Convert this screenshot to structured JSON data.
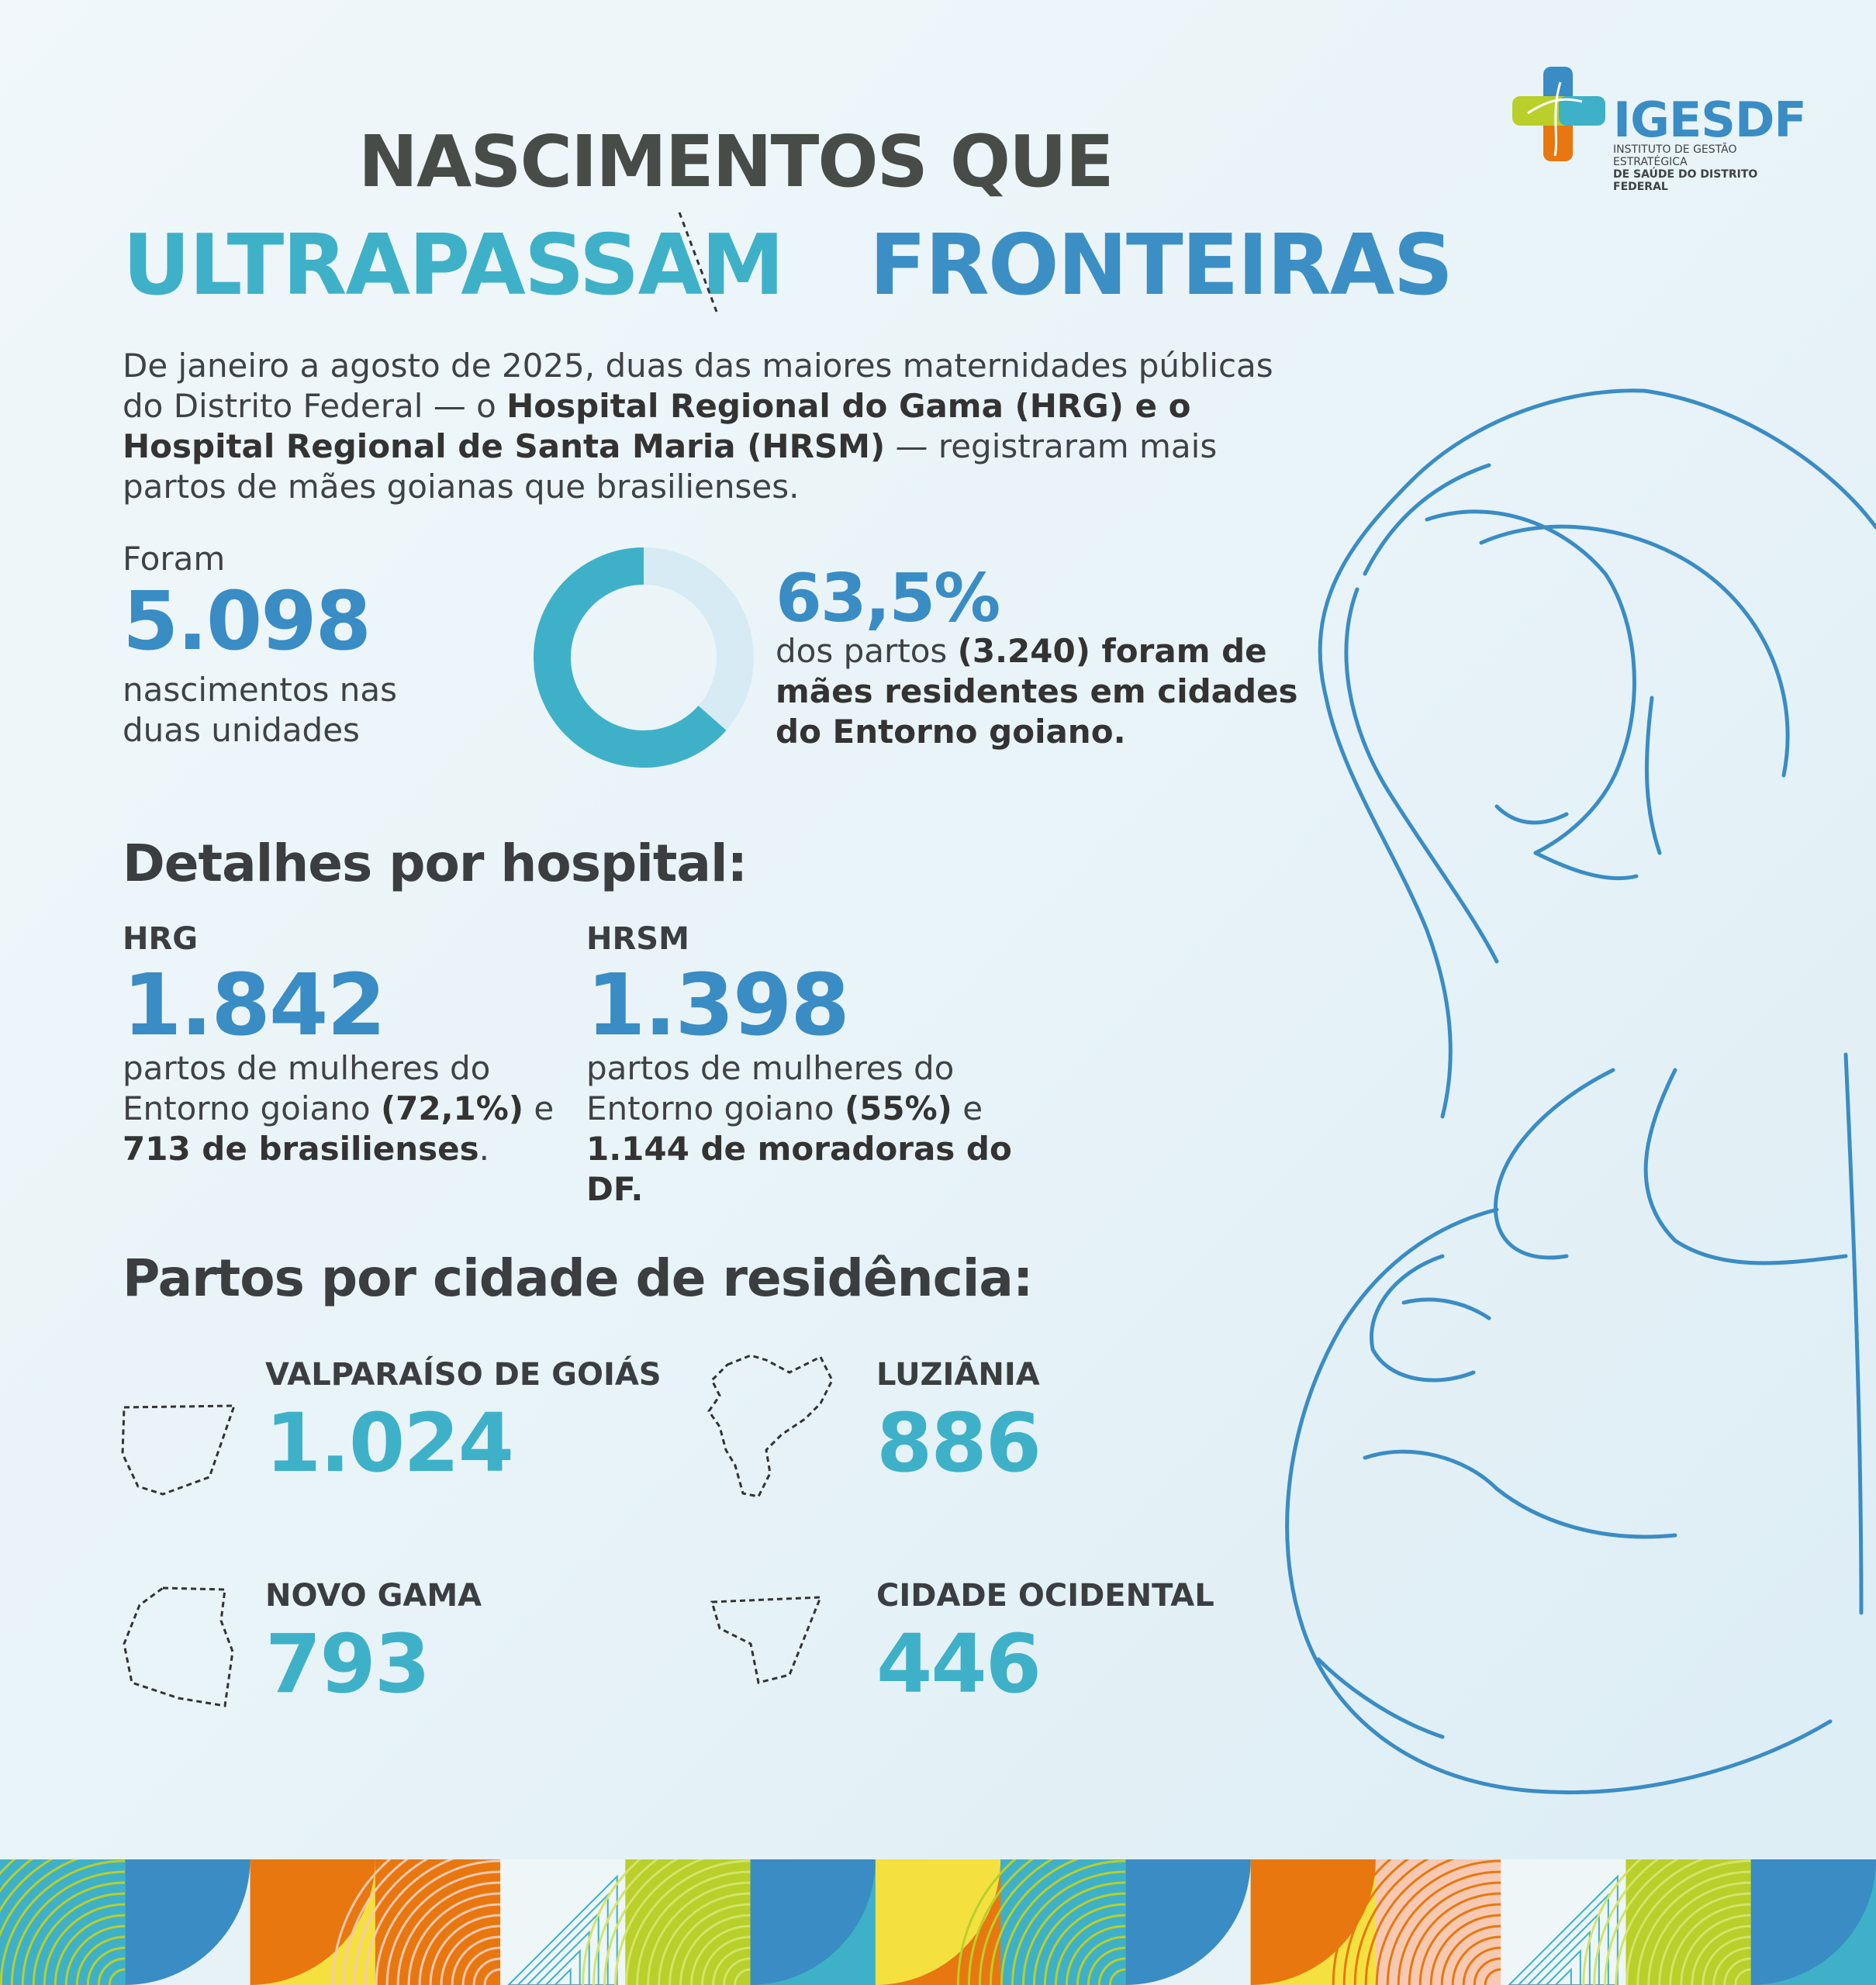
{
  "logo": {
    "name": "IGESDF",
    "subtitle_line1": "INSTITUTO DE GESTÃO ESTRATÉGICA",
    "subtitle_line2": "DE SAÚDE DO DISTRITO FEDERAL"
  },
  "title": {
    "line1": "NASCIMENTOS QUE",
    "line2_word1": "ULTRAPASSAM",
    "line2_word2": "FRONTEIRAS"
  },
  "intro": {
    "text1": "De janeiro a agosto de 2025, duas das maiores maternidades públicas do Distrito Federal —  o ",
    "bold": "Hospital Regional do Gama (HRG) e o Hospital Regional de Santa Maria (HRSM)",
    "text2": " — registraram mais partos de mães goianas que brasilienses."
  },
  "total": {
    "label": "Foram",
    "value": "5.098",
    "description": "nascimentos nas duas unidades"
  },
  "entorno_share": {
    "value": "63,5%",
    "fraction": 0.635,
    "text1": "dos partos ",
    "bold": "(3.240) foram de mães residentes em cidades do Entorno goiano."
  },
  "hospitals": {
    "heading": "Detalhes por hospital:",
    "hrg": {
      "label": "HRG",
      "value": "1.842",
      "text1": "partos de mulheres do Entorno goiano ",
      "bold1": "(72,1%)",
      "text2": " e ",
      "bold2": "713 de brasilienses",
      "text3": "."
    },
    "hrsm": {
      "label": "HRSM",
      "value": "1.398",
      "text1": "partos de mulheres do Entorno goiano ",
      "bold1": "(55%)",
      "text2": " e ",
      "bold2": "1.144 de moradoras do DF."
    }
  },
  "cities": {
    "heading": "Partos por cidade de residência:",
    "items": [
      {
        "name": "VALPARAÍSO DE GOIÁS",
        "value": "1.024"
      },
      {
        "name": "LUZIÂNIA",
        "value": "886"
      },
      {
        "name": "NOVO GAMA",
        "value": "793"
      },
      {
        "name": "CIDADE OCIDENTAL",
        "value": "446"
      }
    ]
  },
  "colors": {
    "teal": "#3eb1c8",
    "blue": "#3a8cc4",
    "dark": "#474c48",
    "orange": "#e8770f",
    "yellow": "#f4e13f",
    "lime": "#b9cf2a",
    "peach": "#f7c9b2"
  }
}
